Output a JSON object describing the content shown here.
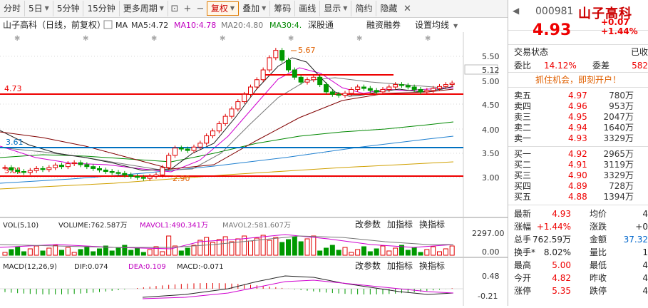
{
  "toolbar": {
    "items": [
      "分时",
      "5日",
      "5分钟",
      "15分钟",
      "更多周期",
      "复权",
      "叠加",
      "筹码",
      "画线",
      "显示",
      "简约",
      "隐藏"
    ]
  },
  "chart_header": {
    "title": "山子高科（日线，前复权）",
    "ma_label": "MA",
    "ma5": "MA5:4.72",
    "ma10": "MA10:4.78",
    "ma20": "MA20:4.80",
    "ma30": "MA30:4.",
    "extra_links": [
      "深股通",
      "融资融券",
      "设置均线"
    ]
  },
  "price_axis": {
    "labels": [
      "5.50",
      "5.12",
      "5.00",
      "4.50",
      "4.00",
      "3.50",
      "3.00"
    ],
    "current": "5.12"
  },
  "annotations": {
    "high": "5.67",
    "low": "2.90",
    "line_473": "4.73",
    "line_361": "3.61",
    "line_301": "3.01"
  },
  "volume_panel": {
    "label": "VOL(5,10)",
    "volume": "VOLUME:762.587万",
    "mavol1": "MAVOL1:490.341万",
    "mavol2": "MAVOL2:581.607万",
    "links": [
      "改参数",
      "加指标",
      "换指标"
    ],
    "axis_top": "2297.00",
    "axis_bottom": "0.00"
  },
  "macd_panel": {
    "label": "MACD(12,26,9)",
    "dif": "DIF:0.074",
    "dea": "DEA:0.109",
    "macd": "MACD:-0.071",
    "links": [
      "改参数",
      "加指标",
      "换指标"
    ],
    "axis_top": "0.48",
    "axis_bottom": "-0.21"
  },
  "quote": {
    "back": "◀",
    "code": "000981",
    "name": "山子高科",
    "price": "4.93",
    "change": "+0.07",
    "change_pct": "+1.44%",
    "status_label": "交易状态",
    "status_value": "已收",
    "weibi_label": "委比",
    "weibi_value": "14.12%",
    "weicha_label": "委差",
    "weicha_value": "582",
    "promo": "抓住机会，即刻开户！",
    "sell": [
      {
        "label": "卖五",
        "price": "4.97",
        "vol": "780万"
      },
      {
        "label": "卖四",
        "price": "4.96",
        "vol": "953万"
      },
      {
        "label": "卖三",
        "price": "4.95",
        "vol": "2047万"
      },
      {
        "label": "卖二",
        "price": "4.94",
        "vol": "1640万"
      },
      {
        "label": "卖一",
        "price": "4.93",
        "vol": "3329万"
      }
    ],
    "buy": [
      {
        "label": "买一",
        "price": "4.92",
        "vol": "2965万"
      },
      {
        "label": "买二",
        "price": "4.91",
        "vol": "3119万"
      },
      {
        "label": "买三",
        "price": "4.90",
        "vol": "3329万"
      },
      {
        "label": "买四",
        "price": "4.89",
        "vol": "728万"
      },
      {
        "label": "买五",
        "price": "4.88",
        "vol": "1394万"
      }
    ],
    "stats": [
      {
        "l1": "最新",
        "v1": "4.93",
        "l2": "均价",
        "v2": "4"
      },
      {
        "l1": "涨幅",
        "v1": "+1.44%",
        "l2": "涨跌",
        "v2": "+0"
      },
      {
        "l1": "总手",
        "v1": "762.59万",
        "l2": "金额",
        "v2": "37.32"
      },
      {
        "l1": "换手*",
        "v1": "8.02%",
        "l2": "量比",
        "v2": "1"
      },
      {
        "l1": "最高",
        "v1": "5.00",
        "l2": "最低",
        "v2": "4"
      },
      {
        "l1": "今开",
        "v1": "4.82",
        "l2": "昨收",
        "v2": "4"
      },
      {
        "l1": "涨停",
        "v1": "5.35",
        "l2": "跌停",
        "v2": "4"
      }
    ]
  },
  "colors": {
    "up": "#e00000",
    "down": "#009900",
    "ma5": "#222222",
    "ma10": "#d000d0",
    "ma20": "#888888",
    "ma30": "#008800"
  }
}
